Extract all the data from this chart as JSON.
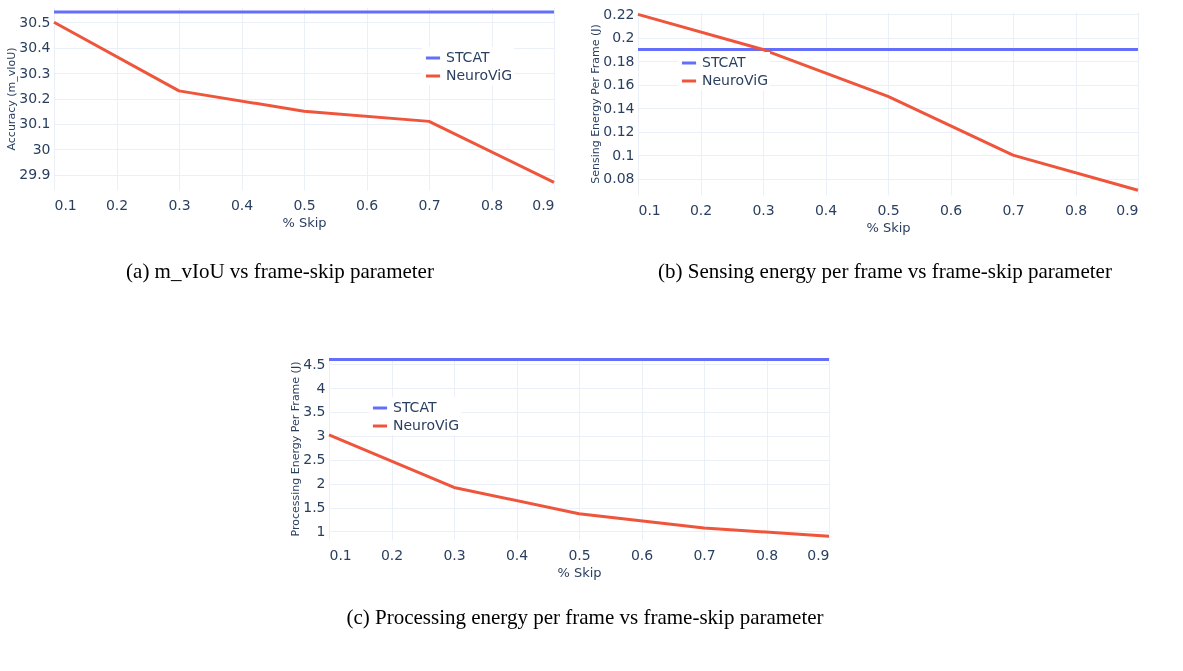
{
  "chart_data": [
    {
      "type": "line",
      "xlabel": "% Skip",
      "ylabel": "Accuracy (m_vIoU)",
      "x": [
        0.1,
        0.3,
        0.5,
        0.7,
        0.9
      ],
      "xlim": [
        0.1,
        0.9
      ],
      "xticks": [
        0.1,
        0.2,
        0.3,
        0.4,
        0.5,
        0.6,
        0.7,
        0.8,
        0.9
      ],
      "ylim": [
        29.84,
        30.56
      ],
      "yticks": [
        29.9,
        30,
        30.1,
        30.2,
        30.3,
        30.4,
        30.5
      ],
      "grid": true,
      "legend": "top right",
      "line_style": "solid",
      "series": [
        {
          "name": "STCAT",
          "color": "#636efa",
          "values": [
            30.54,
            30.54,
            30.54,
            30.54,
            30.54
          ]
        },
        {
          "name": "NeuroViG",
          "color": "#ef553b",
          "values": [
            30.5,
            30.23,
            30.15,
            30.11,
            29.87
          ]
        }
      ],
      "annotations": [
        "(a)  m_vIoU vs frame-skip parameter"
      ]
    },
    {
      "type": "line",
      "xlabel": "% Skip",
      "ylabel": "Sensing Energy Per Frame (J)",
      "x": [
        0.1,
        0.3,
        0.5,
        0.7,
        0.9
      ],
      "xlim": [
        0.1,
        0.9
      ],
      "xticks": [
        0.1,
        0.2,
        0.3,
        0.4,
        0.5,
        0.6,
        0.7,
        0.8,
        0.9
      ],
      "ylim": [
        0.066,
        0.222
      ],
      "yticks": [
        0.08,
        0.1,
        0.12,
        0.14,
        0.16,
        0.18,
        0.2,
        0.22
      ],
      "grid": true,
      "legend": "top left",
      "line_style": "solid",
      "series": [
        {
          "name": "STCAT",
          "color": "#636efa",
          "values": [
            0.19,
            0.19,
            0.19,
            0.19,
            0.19
          ]
        },
        {
          "name": "NeuroViG",
          "color": "#ef553b",
          "values": [
            0.22,
            0.19,
            0.15,
            0.1,
            0.07
          ]
        }
      ],
      "annotations": [
        "(b)  Sensing energy per frame vs frame-skip parameter"
      ]
    },
    {
      "type": "line",
      "xlabel": "% Skip",
      "ylabel": "Processing Energy Per Frame (J)",
      "x": [
        0.1,
        0.3,
        0.5,
        0.7,
        0.9
      ],
      "xlim": [
        0.1,
        0.9
      ],
      "xticks": [
        0.1,
        0.2,
        0.3,
        0.4,
        0.5,
        0.6,
        0.7,
        0.8,
        0.9
      ],
      "ylim": [
        0.82,
        4.65
      ],
      "yticks": [
        1,
        1.5,
        2,
        2.5,
        3,
        3.5,
        4,
        4.5
      ],
      "grid": true,
      "legend": "top left",
      "line_style": "solid",
      "series": [
        {
          "name": "STCAT",
          "color": "#636efa",
          "values": [
            4.6,
            4.6,
            4.6,
            4.6,
            4.6
          ]
        },
        {
          "name": "NeuroViG",
          "color": "#ef553b",
          "values": [
            3.02,
            1.92,
            1.37,
            1.07,
            0.9
          ]
        }
      ],
      "annotations": [
        "(c)  Processing energy per frame vs frame-skip parameter"
      ]
    }
  ]
}
